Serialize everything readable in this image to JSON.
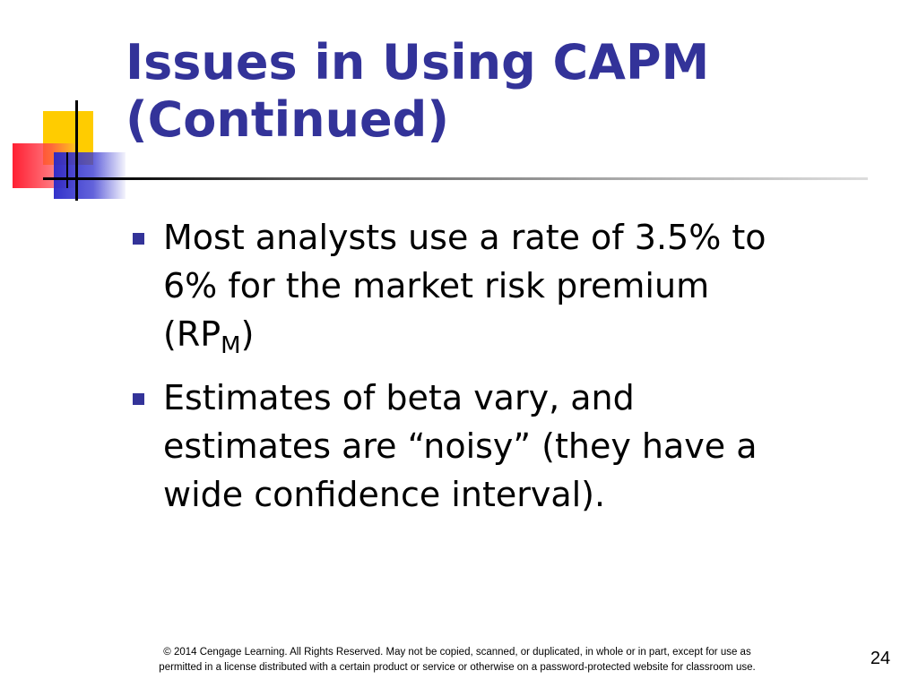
{
  "title": {
    "line1": "Issues in Using CAPM",
    "line2": "(Continued)"
  },
  "bullets": [
    {
      "line1": "Most analysts use a rate of 3.5% to",
      "line2": "6% for the market risk premium",
      "line3_prefix": "(RP",
      "line3_subscript": "M",
      "line3_suffix": ")"
    },
    {
      "line1": "Estimates of beta vary, and",
      "line2": "estimates are “noisy” (they have a",
      "line3": "wide confidence interval)."
    }
  ],
  "footer": {
    "line1": "© 2014 Cengage Learning. All Rights Reserved. May not be copied, scanned, or duplicated, in whole or in part, except for use as",
    "line2": "permitted in a license distributed with a certain product or service or otherwise on a password-protected website for classroom use."
  },
  "page_number": "24",
  "colors": {
    "title": "#333399",
    "accent_yellow": "#ffcc00",
    "accent_red": "#ff1428",
    "accent_blue": "#2828c8"
  }
}
